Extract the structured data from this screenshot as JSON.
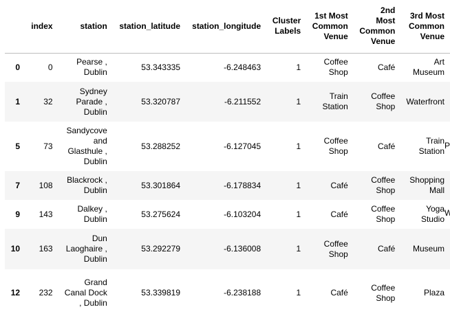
{
  "table": {
    "headers": [
      "",
      "index",
      "station",
      "station_latitude",
      "station_longitude",
      "Cluster Labels",
      "1st Most Common Venue",
      "2nd Most Common Venue",
      "3rd Most Common Venue"
    ],
    "rows": [
      {
        "rowid": "0",
        "index": "0",
        "station": "Pearse , Dublin",
        "lat": "53.343335",
        "lon": "-6.248463",
        "cluster": "1",
        "v1": "Coffee Shop",
        "v2": "Café",
        "v3": "Art Museum"
      },
      {
        "rowid": "1",
        "index": "32",
        "station": "Sydney Parade , Dublin",
        "lat": "53.320787",
        "lon": "-6.211552",
        "cluster": "1",
        "v1": "Train Station",
        "v2": "Coffee Shop",
        "v3": "Waterfront"
      },
      {
        "rowid": "5",
        "index": "73",
        "station": "Sandycove and Glasthule , Dublin",
        "lat": "53.288252",
        "lon": "-6.127045",
        "cluster": "1",
        "v1": "Coffee Shop",
        "v2": "Café",
        "v3": "Train Station"
      },
      {
        "rowid": "7",
        "index": "108",
        "station": "Blackrock , Dublin",
        "lat": "53.301864",
        "lon": "-6.178834",
        "cluster": "1",
        "v1": "Café",
        "v2": "Coffee Shop",
        "v3": "Shopping Mall"
      },
      {
        "rowid": "9",
        "index": "143",
        "station": "Dalkey , Dublin",
        "lat": "53.275624",
        "lon": "-6.103204",
        "cluster": "1",
        "v1": "Café",
        "v2": "Coffee Shop",
        "v3": "Yoga Studio"
      },
      {
        "rowid": "10",
        "index": "163",
        "station": "Dun Laoghaire , Dublin",
        "lat": "53.292279",
        "lon": "-6.136008",
        "cluster": "1",
        "v1": "Coffee Shop",
        "v2": "Café",
        "v3": "Museum"
      },
      {
        "rowid": "12",
        "index": "232",
        "station": "Grand Canal Dock , Dublin",
        "lat": "53.339819",
        "lon": "-6.238188",
        "cluster": "1",
        "v1": "Café",
        "v2": "Coffee Shop",
        "v3": "Plaza"
      }
    ],
    "clipped_next_column": [
      "Pl",
      "W"
    ]
  }
}
